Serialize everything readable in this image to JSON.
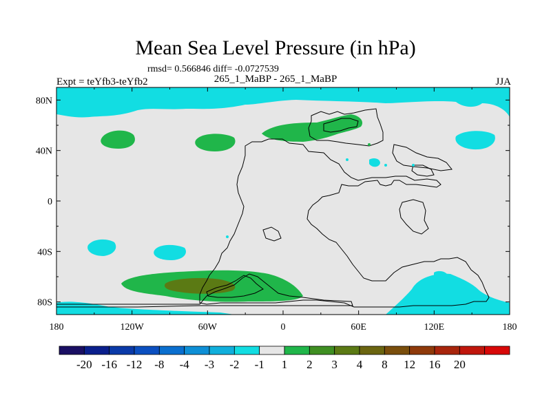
{
  "map": {
    "title": "Mean Sea Level Pressure (in hPa)",
    "stats_line": "rmsd= 0.566846 diff= -0.0727539",
    "left_label": "Expt = teYfb3-teYfb2",
    "center_label": "265_1_MaBP - 265_1_MaBP",
    "right_label": "JJA",
    "projection": "cylindrical equidistant",
    "lon_range": [
      -180,
      180
    ],
    "lat_range": [
      -90,
      90
    ],
    "lon_ticks": [
      "180",
      "120W",
      "60W",
      "0",
      "60E",
      "120E",
      "180"
    ],
    "lat_ticks": [
      "80N",
      "40N",
      "0",
      "40S",
      "80S"
    ]
  },
  "colorbar": {
    "colors": [
      "#1a0f63",
      "#0a1f8c",
      "#0a3aa8",
      "#0b4fc0",
      "#0a6fcf",
      "#0e8fd6",
      "#10afdc",
      "#12dde2",
      "#e6e6e6",
      "#20b64a",
      "#3f8f22",
      "#5b7a14",
      "#6b6510",
      "#7a4e0c",
      "#8f3a0a",
      "#a8250c",
      "#c0160c",
      "#d80808"
    ],
    "labels": [
      "-20",
      "-16",
      "-12",
      "-8",
      "-4",
      "-3",
      "-2",
      "-1",
      "1",
      "2",
      "3",
      "4",
      "8",
      "12",
      "16",
      "20"
    ]
  },
  "fill_colors": {
    "background": "#e6e6e6",
    "negative_1_2": "#12dde2",
    "positive_1_2": "#20b64a",
    "positive_3_4": "#5b7a14"
  }
}
